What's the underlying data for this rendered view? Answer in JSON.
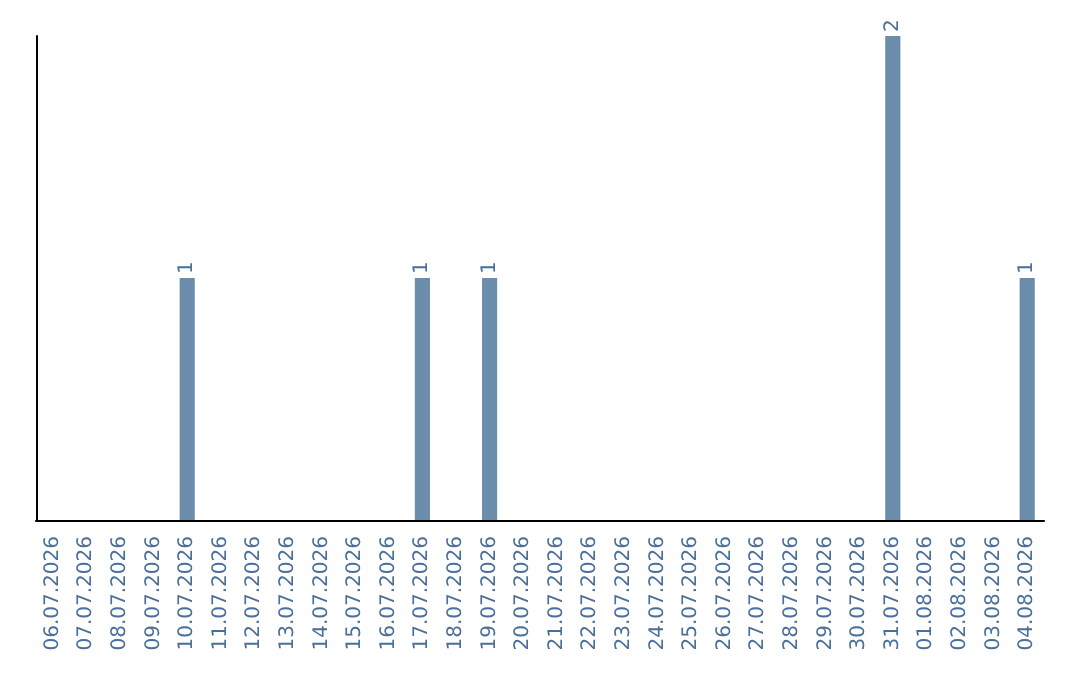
{
  "chart_data": {
    "type": "bar",
    "categories": [
      "06.07.2026",
      "07.07.2026",
      "08.07.2026",
      "09.07.2026",
      "10.07.2026",
      "11.07.2026",
      "12.07.2026",
      "13.07.2026",
      "14.07.2026",
      "15.07.2026",
      "16.07.2026",
      "17.07.2026",
      "18.07.2026",
      "19.07.2026",
      "20.07.2026",
      "21.07.2026",
      "22.07.2026",
      "23.07.2026",
      "24.07.2026",
      "25.07.2026",
      "26.07.2026",
      "27.07.2026",
      "28.07.2026",
      "29.07.2026",
      "30.07.2026",
      "31.07.2026",
      "01.08.2026",
      "02.08.2026",
      "03.08.2026",
      "04.08.2026"
    ],
    "values": [
      0,
      0,
      0,
      0,
      1,
      0,
      0,
      0,
      0,
      0,
      0,
      1,
      0,
      1,
      0,
      0,
      0,
      0,
      0,
      0,
      0,
      0,
      0,
      0,
      0,
      2,
      0,
      0,
      0,
      1
    ],
    "value_labels": [
      null,
      null,
      null,
      null,
      "1",
      null,
      null,
      null,
      null,
      null,
      null,
      "1",
      null,
      "1",
      null,
      null,
      null,
      null,
      null,
      null,
      null,
      null,
      null,
      null,
      null,
      "2",
      null,
      null,
      null,
      "1"
    ],
    "color": "#6b8caa",
    "grid": false,
    "tick_labels": "x"
  }
}
